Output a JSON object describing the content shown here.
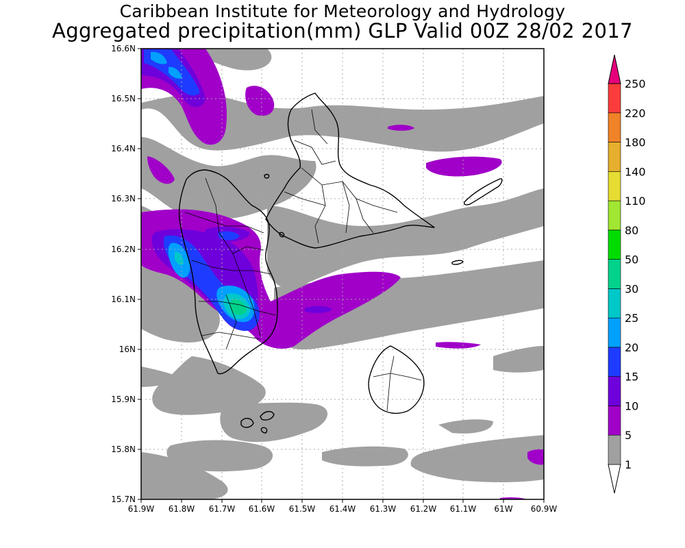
{
  "title": {
    "line1": "Caribbean Institute for Meteorology and Hydrology",
    "line2": "Aggregated precipitation(mm) GLP Valid 00Z 28/02 2017"
  },
  "map": {
    "region": "Guadeloupe",
    "lon_range": [
      "61.9W",
      "60.9W"
    ],
    "lat_range": [
      "15.7N",
      "16.6N"
    ],
    "x_ticks": [
      "61.9W",
      "61.8W",
      "61.7W",
      "61.6W",
      "61.5W",
      "61.4W",
      "61.3W",
      "61.2W",
      "61.1W",
      "61W",
      "60.9W"
    ],
    "y_ticks": [
      "16.6N",
      "16.5N",
      "16.4N",
      "16.3N",
      "16.2N",
      "16.1N",
      "16N",
      "15.9N",
      "15.8N",
      "15.7N"
    ],
    "grid": "dotted",
    "max_precipitation_area": "southern Basse-Terre"
  },
  "colorbar": {
    "labels": [
      "1",
      "5",
      "10",
      "15",
      "20",
      "25",
      "30",
      "50",
      "80",
      "110",
      "140",
      "180",
      "220",
      "250"
    ],
    "colors": [
      "#ffffff",
      "#a0a0a0",
      "#a000c8",
      "#6e00dc",
      "#1e3cff",
      "#00a0ff",
      "#00c8c8",
      "#00d28c",
      "#00dc00",
      "#a0e632",
      "#e6dc32",
      "#e6af2d",
      "#f08228",
      "#fa3c3c",
      "#e6007a"
    ]
  }
}
